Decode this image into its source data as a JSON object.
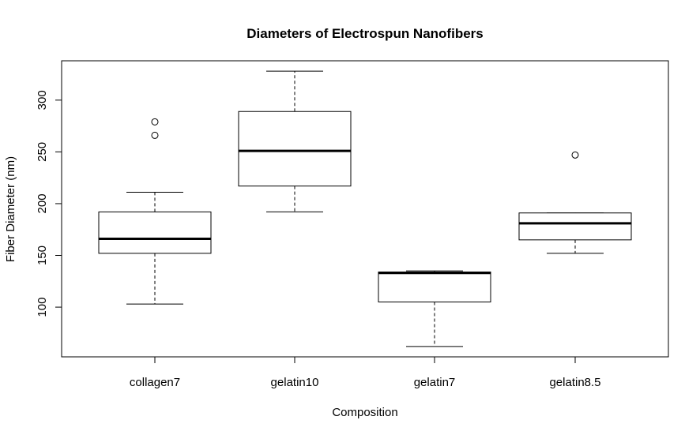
{
  "chart_data": {
    "type": "box",
    "title": "Diameters of Electrospun Nanofibers",
    "xlabel": "Composition",
    "ylabel": "Fiber Diameter (nm)",
    "ylim": [
      52,
      338
    ],
    "yticks": [
      100,
      150,
      200,
      250,
      300
    ],
    "categories": [
      "collagen7",
      "gelatin10",
      "gelatin7",
      "gelatin8.5"
    ],
    "boxes": [
      {
        "category": "collagen7",
        "whisker_low": 103,
        "q1": 152,
        "median": 166,
        "q3": 192,
        "whisker_high": 211,
        "outliers": [
          266,
          279
        ]
      },
      {
        "category": "gelatin10",
        "whisker_low": 192,
        "q1": 217,
        "median": 251,
        "q3": 289,
        "whisker_high": 328,
        "outliers": []
      },
      {
        "category": "gelatin7",
        "whisker_low": 62,
        "q1": 105,
        "median": 133,
        "q3": 134,
        "whisker_high": 135,
        "outliers": []
      },
      {
        "category": "gelatin8.5",
        "whisker_low": 152,
        "q1": 165,
        "median": 181,
        "q3": 191,
        "whisker_high": 191,
        "outliers": [
          247
        ]
      }
    ],
    "grid": false,
    "legend": "none"
  }
}
